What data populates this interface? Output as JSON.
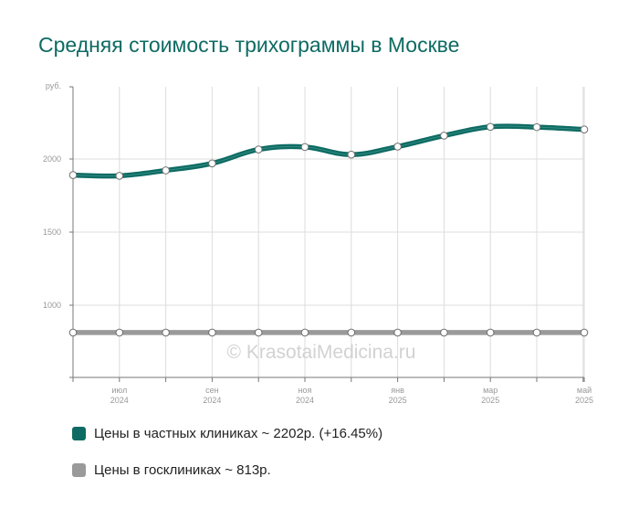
{
  "title": "Средняя стоимость трихограммы в Москве",
  "watermark": "© KrasotaiMedicina.ru",
  "chart_data": {
    "type": "line",
    "y_unit": "руб.",
    "ylim": [
      800,
      2000
    ],
    "y_ticks": [
      1000,
      1500,
      2000
    ],
    "grid": true,
    "x": [
      "2024-05",
      "2024-06",
      "2024-07",
      "2024-08",
      "2024-09",
      "2024-10",
      "2024-11",
      "2024-12",
      "2025-01",
      "2025-02",
      "2025-03",
      "2025-04",
      "2025-05"
    ],
    "x_tick_labels": [
      {
        "index": 2,
        "month": "июл",
        "year": "2024"
      },
      {
        "index": 4,
        "month": "сен",
        "year": "2024"
      },
      {
        "index": 6,
        "month": "ноя",
        "year": "2024"
      },
      {
        "index": 8,
        "month": "янв",
        "year": "2025"
      },
      {
        "index": 10,
        "month": "мар",
        "year": "2025"
      },
      {
        "index": 12,
        "month": "май",
        "year": "2025"
      }
    ],
    "series": [
      {
        "name": "Цены в частных клиниках",
        "color": "#0e6b63",
        "values": [
          null,
          1890,
          1885,
          1922,
          1970,
          2065,
          2082,
          2030,
          2085,
          2160,
          2220,
          2218,
          2202
        ]
      },
      {
        "name": "Цены в госклиниках",
        "color": "#9a9a9a",
        "values": [
          null,
          813,
          813,
          813,
          813,
          813,
          813,
          813,
          813,
          813,
          813,
          813,
          813
        ]
      }
    ]
  },
  "legend": [
    {
      "label": "Цены в частных клиниках ~ 2202р. (+16.45%)",
      "color": "#0e6b63"
    },
    {
      "label": "Цены в госклиниках ~ 813р.",
      "color": "#9a9a9a"
    }
  ]
}
